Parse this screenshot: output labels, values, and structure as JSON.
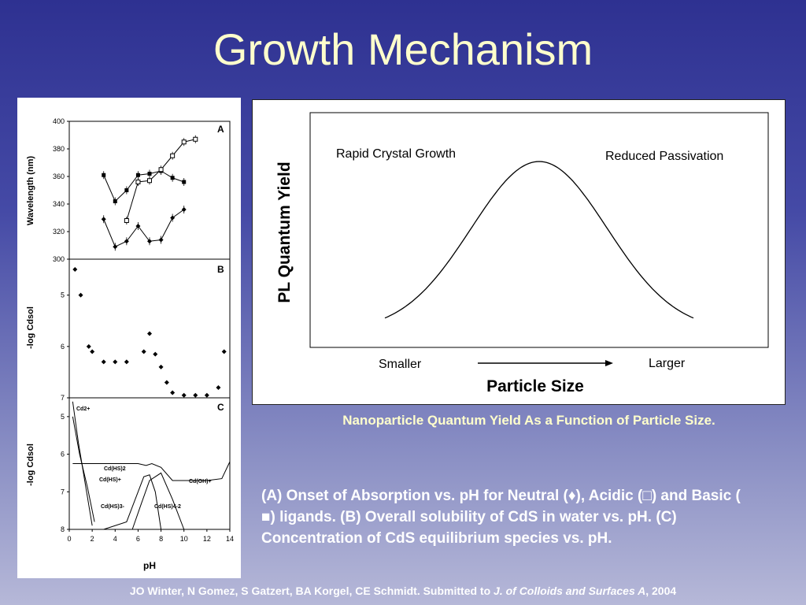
{
  "slide": {
    "title": "Growth Mechanism",
    "caption": "Nanoparticle Quantum Yield As a Function of Particle Size.",
    "description": "(A) Onset of Absorption vs. pH for Neutral (♦), Acidic (□) and Basic ( ■) ligands. (B) Overall solubility of CdS in water vs. pH. (C) Concentration of CdS equilibrium species vs. pH.",
    "citation_authors": "JO Winter, N Gomez, S Gatzert, BA Korgel, CE Schmidt. Submitted to ",
    "citation_journal": "J. of Colloids and Surfaces A",
    "citation_year": ", 2004",
    "colors": {
      "title": "#ffffcc",
      "caption": "#ffffcc",
      "text": "#ffffff"
    }
  },
  "chart_data": [
    {
      "type": "line",
      "panel": "A",
      "ylabel": "Wavelength (nm)",
      "xlim": [
        0,
        14
      ],
      "ylim": [
        300,
        400
      ],
      "yticks": [
        "300",
        "320",
        "340",
        "360",
        "380",
        "400"
      ],
      "series": [
        {
          "marker": "filled-square",
          "x": [
            3,
            4,
            5,
            6,
            7,
            8,
            9,
            10
          ],
          "y": [
            361,
            342,
            350,
            361,
            362,
            364,
            359,
            356
          ]
        },
        {
          "marker": "open-square",
          "x": [
            5,
            6,
            7,
            8,
            9,
            10,
            11
          ],
          "y": [
            328,
            356,
            357,
            365,
            375,
            385,
            387
          ]
        },
        {
          "marker": "diamond",
          "x": [
            3,
            4,
            5,
            6,
            7,
            8,
            9,
            10
          ],
          "y": [
            329,
            309,
            313,
            324,
            313,
            314,
            330,
            336
          ]
        }
      ]
    },
    {
      "type": "scatter",
      "panel": "B",
      "ylabel": "-log Cdsol",
      "xlim": [
        0,
        14
      ],
      "ylim": [
        4.3,
        7
      ],
      "yticks": [
        "5",
        "6",
        "7"
      ],
      "series": [
        {
          "marker": "diamond",
          "x": [
            0.5,
            1,
            1.7,
            2,
            3,
            4,
            5,
            6.5,
            7,
            7.5,
            8,
            8.5,
            9,
            10,
            11,
            12,
            13,
            13.5
          ],
          "y": [
            4.5,
            5.0,
            6.0,
            6.1,
            6.3,
            6.3,
            6.3,
            6.1,
            5.75,
            6.15,
            6.4,
            6.7,
            6.9,
            6.95,
            6.95,
            6.95,
            6.8,
            6.1
          ]
        }
      ]
    },
    {
      "type": "line",
      "panel": "C",
      "ylabel": "-log Cdsol",
      "xlabel": "pH",
      "xlim": [
        0,
        14
      ],
      "ylim": [
        4.5,
        8
      ],
      "yticks": [
        "5",
        "6",
        "7",
        "8"
      ],
      "xticks": [
        "0",
        "2",
        "4",
        "6",
        "8",
        "10",
        "12",
        "14"
      ],
      "series": [
        {
          "name": "Cd2+",
          "x": [
            0.3,
            0.8,
            1.4,
            2.0
          ],
          "y": [
            4.6,
            5.7,
            6.8,
            7.9
          ]
        },
        {
          "name": "Cd(HS)+",
          "x": [
            0.3,
            0.9,
            1.6,
            2.2
          ],
          "y": [
            5.0,
            6.0,
            6.9,
            7.8
          ]
        },
        {
          "name": "Cd(HS)2",
          "x": [
            0.3,
            6.0,
            6.7,
            7.2,
            8.0,
            9.0,
            12.0,
            13.3,
            14.0
          ],
          "y": [
            6.25,
            6.25,
            6.3,
            6.25,
            6.35,
            6.7,
            6.7,
            6.65,
            6.2
          ]
        },
        {
          "name": "Cd(HS)3-",
          "x": [
            3.0,
            5.0,
            6.0,
            6.5,
            7.0,
            7.5,
            8.0
          ],
          "y": [
            8.0,
            7.8,
            7.0,
            6.6,
            6.55,
            7.0,
            8.0
          ]
        },
        {
          "name": "Cd(HS)4-2",
          "x": [
            5.5,
            6.3,
            7.0,
            8.0,
            9.0,
            10.0
          ],
          "y": [
            8.0,
            7.3,
            6.7,
            6.5,
            7.2,
            8.0
          ]
        },
        {
          "name": "Cd(OH)+",
          "x": [],
          "y": []
        }
      ],
      "labels": [
        "Cd2+",
        "Cd(HS)2",
        "Cd(HS)+",
        "Cd(OH)+",
        "Cd(HS)3-",
        "Cd(HS)4-2"
      ]
    },
    {
      "type": "line",
      "panel": "quantum-yield",
      "ylabel": "PL Quantum Yield",
      "xlabel": "Particle Size",
      "x_left_label": "Smaller",
      "x_right_label": "Larger",
      "annotations": [
        "Rapid Crystal Growth",
        "Reduced Passivation"
      ],
      "curve": "bell",
      "x": [
        0,
        0.2,
        0.4,
        0.5,
        0.6,
        0.8,
        1.0
      ],
      "y": [
        0.08,
        0.55,
        0.95,
        1.0,
        0.95,
        0.55,
        0.08
      ]
    }
  ]
}
